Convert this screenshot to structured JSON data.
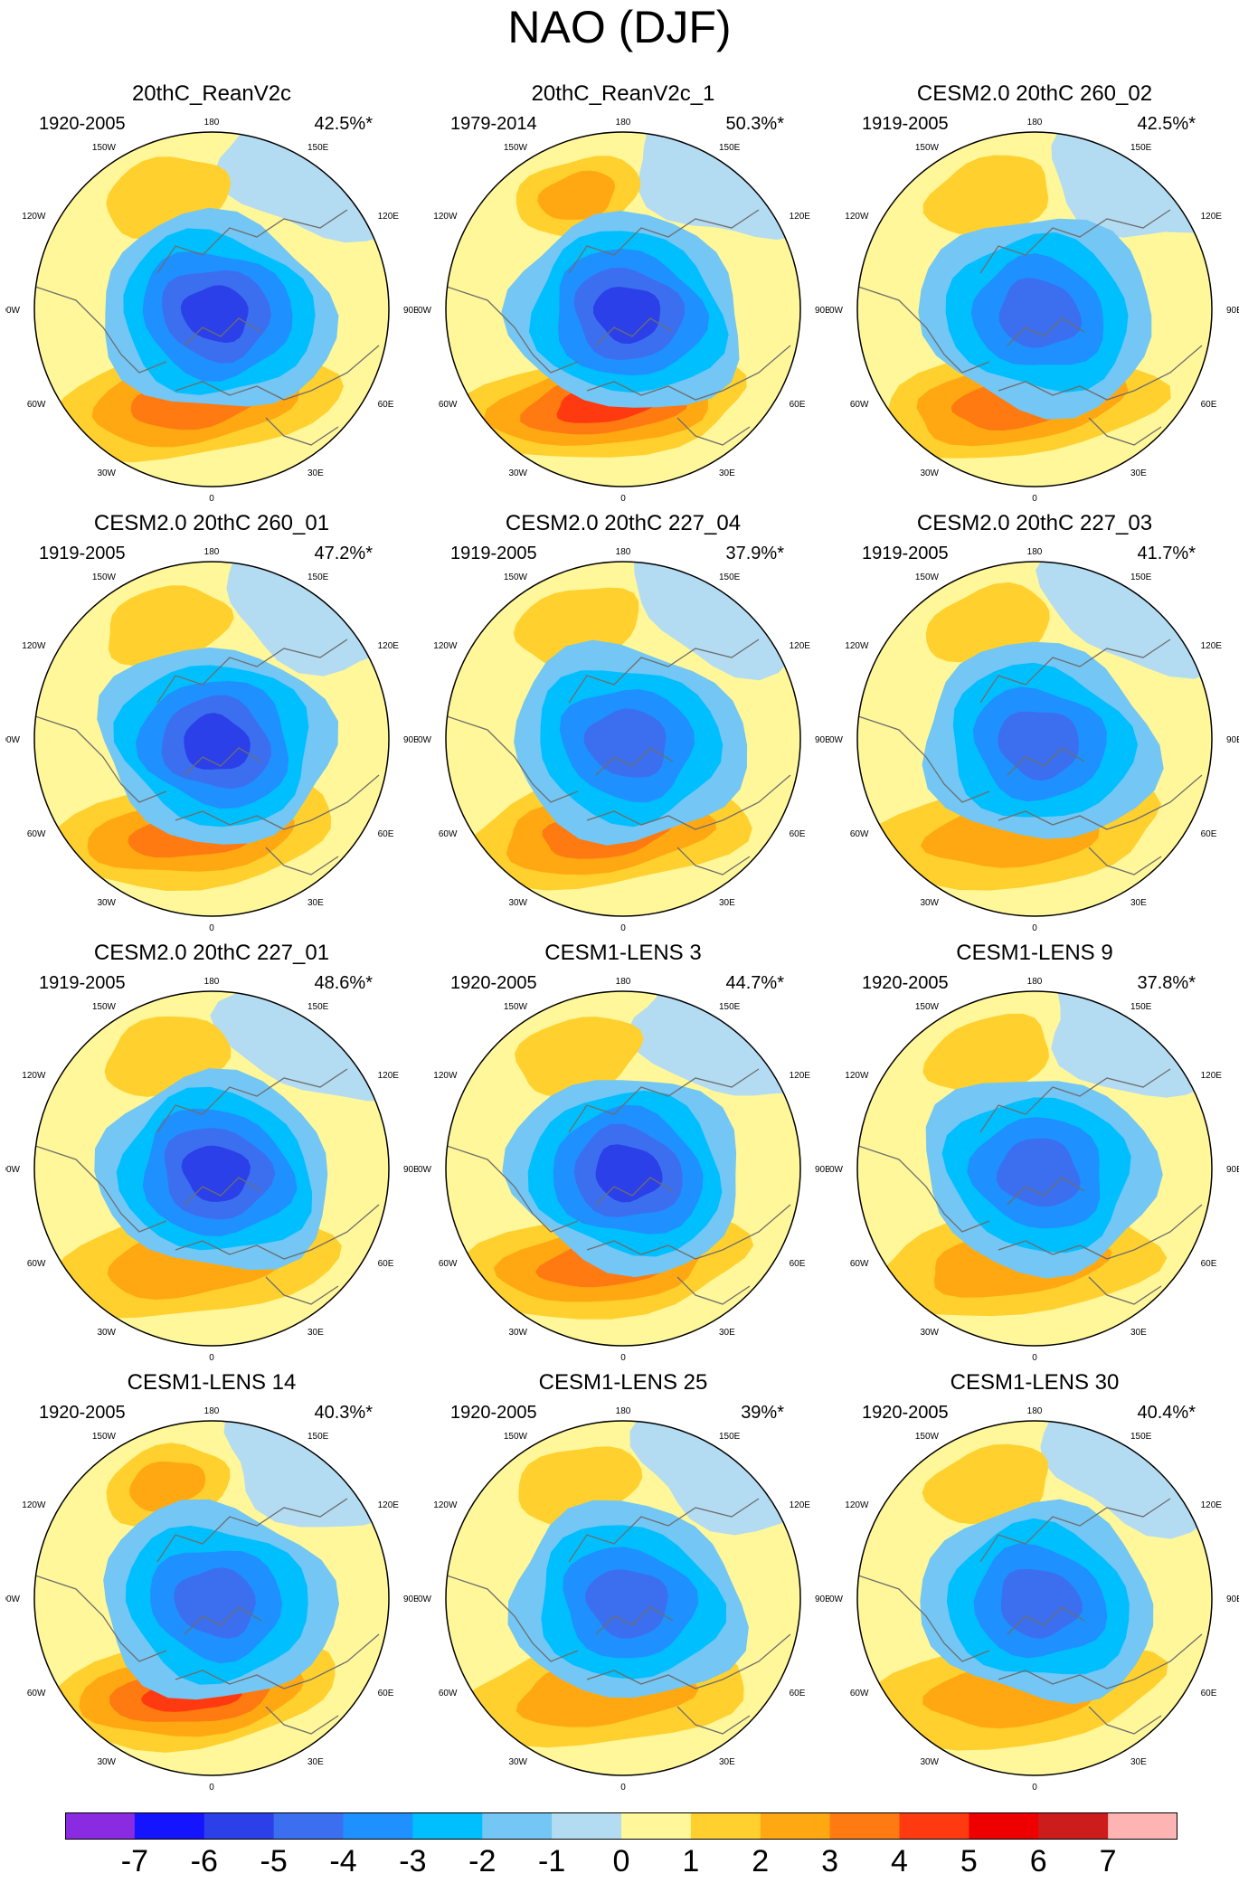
{
  "chart_data": {
    "type": "heatmap",
    "title": "NAO (DJF)",
    "projection": "polar stereographic, Northern Hemisphere",
    "colorbar": {
      "labels": [
        "-7",
        "-6",
        "-5",
        "-4",
        "-3",
        "-2",
        "-1",
        "0",
        "1",
        "2",
        "3",
        "4",
        "5",
        "6",
        "7"
      ],
      "colors": [
        "#8a2be2",
        "#1414ff",
        "#2b40e8",
        "#3c6fef",
        "#1e90ff",
        "#00bfff",
        "#74c6f4",
        "#b3dcf2",
        "#fff799",
        "#ffd02e",
        "#ffa812",
        "#ff7a10",
        "#ff3a10",
        "#ee0000",
        "#cc1c1c",
        "#ffb4b4"
      ]
    },
    "longitude_labels": [
      "180",
      "150E",
      "120E",
      "90E",
      "60E",
      "30E",
      "0",
      "30W",
      "60W",
      "90W",
      "120W",
      "150W"
    ],
    "panels": [
      {
        "title": "20thC_ReanV2c",
        "period": "1920-2005",
        "variance": "42.5%*",
        "low": -5.2,
        "high": 3.6
      },
      {
        "title": "20thC_ReanV2c_1",
        "period": "1979-2014",
        "variance": "50.3%*",
        "low": -5.6,
        "high": 4.4
      },
      {
        "title": "CESM2.0 20thC 260_02",
        "period": "1919-2005",
        "variance": "42.5%*",
        "low": -4.8,
        "high": 3.2
      },
      {
        "title": "CESM2.0 20thC 260_01",
        "period": "1919-2005",
        "variance": "47.2%*",
        "low": -5.6,
        "high": 3.2
      },
      {
        "title": "CESM2.0 20thC 227_04",
        "period": "1919-2005",
        "variance": "37.9%*",
        "low": -4.4,
        "high": 3.2
      },
      {
        "title": "CESM2.0 20thC 227_03",
        "period": "1919-2005",
        "variance": "41.7%*",
        "low": -4.6,
        "high": 2.6
      },
      {
        "title": "CESM2.0 20thC 227_01",
        "period": "1919-2005",
        "variance": "48.6%*",
        "low": -5.8,
        "high": 2.6
      },
      {
        "title": "CESM1-LENS 3",
        "period": "1920-2005",
        "variance": "44.7%*",
        "low": -5.2,
        "high": 3.2
      },
      {
        "title": "CESM1-LENS 9",
        "period": "1920-2005",
        "variance": "37.8%*",
        "low": -4.6,
        "high": 2.6
      },
      {
        "title": "CESM1-LENS 14",
        "period": "1920-2005",
        "variance": "40.3%*",
        "low": -4.2,
        "high": 4.4
      },
      {
        "title": "CESM1-LENS 25",
        "period": "1920-2005",
        "variance": "39%*",
        "low": -4.6,
        "high": 2.6
      },
      {
        "title": "CESM1-LENS 30",
        "period": "1920-2005",
        "variance": "40.4%*",
        "low": -4.4,
        "high": 2.6
      }
    ]
  }
}
